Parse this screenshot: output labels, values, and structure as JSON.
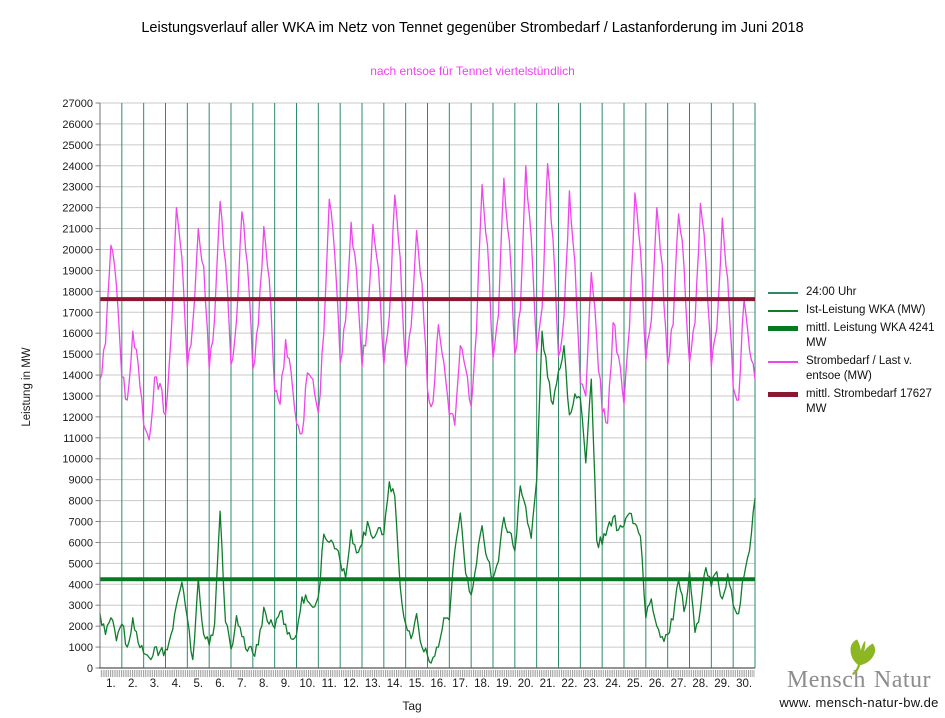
{
  "title": "Leistungsverlauf aller WKA im Netz von Tennet gegenüber  Strombedarf / Lastanforderung im Juni 2018",
  "subtitle": "nach entsoe für Tennet viertelstündlich",
  "subtitle_color": "#f23ff2",
  "legend": {
    "items": [
      {
        "label": "24:00 Uhr",
        "color": "#2e8b6a",
        "thick": false
      },
      {
        "label": "Ist-Leistung WKA (MW)",
        "color": "#0e7d2c",
        "thick": false
      },
      {
        "label": "mittl. Leistung WKA 4241 MW",
        "color": "#067a22",
        "thick": true
      },
      {
        "label": "Strombedarf / Last v. entsoe (MW)",
        "color": "#ee46ec",
        "thick": false
      },
      {
        "label": "mittl. Strombedarf 17627 MW",
        "color": "#8b1733",
        "thick": true
      }
    ]
  },
  "logo": {
    "name_part1": "Mensch",
    "name_part2": "Natur",
    "url": "www. mensch-natur-bw.de",
    "leaf_color": "#8cb622"
  },
  "chart_data": {
    "type": "line",
    "title": "Leistungsverlauf aller WKA im Netz von Tennet gegenüber  Strombedarf / Lastanforderung im Juni 2018",
    "subtitle": "nach entsoe für Tennet viertelstündlich",
    "xlabel": "Tag",
    "ylabel": "Leistung in MW",
    "xlim": [
      0,
      30
    ],
    "ylim": [
      0,
      27000
    ],
    "ytick_step": 1000,
    "x_ticklabels": [
      "1.",
      "2.",
      "3.",
      "4.",
      "5.",
      "6.",
      "7.",
      "8.",
      "9.",
      "10.",
      "11.",
      "12.",
      "13.",
      "14.",
      "15.",
      "16.",
      "17.",
      "18.",
      "19.",
      "20.",
      "21.",
      "22.",
      "23.",
      "24.",
      "25.",
      "26.",
      "27.",
      "28.",
      "29.",
      "30."
    ],
    "sample_step_hours": 6,
    "grid": {
      "h_color": "#c9c9c9",
      "v_color": "#2e8b6a",
      "axis_color": "#707070",
      "tick_band_color": "#9e9e9e"
    },
    "day_lines": {
      "name": "24:00 Uhr",
      "color": "#2e8b6a",
      "count": 31
    },
    "series": [
      {
        "name": "Strombedarf / Last v. entsoe (MW)",
        "color": "#ee46ec",
        "width": 1.3,
        "values": [
          13800,
          15500,
          20200,
          18300,
          13900,
          12800,
          16100,
          14500,
          11600,
          10900,
          13900,
          13600,
          12100,
          15800,
          22000,
          19600,
          14400,
          16500,
          21000,
          19200,
          14300,
          16700,
          22300,
          19400,
          14500,
          16600,
          21800,
          19300,
          14300,
          16400,
          21100,
          18600,
          13200,
          12600,
          15700,
          14200,
          11700,
          11200,
          14100,
          13800,
          12200,
          16000,
          22400,
          19800,
          14600,
          16600,
          21300,
          19000,
          14400,
          16500,
          21200,
          19100,
          14500,
          16800,
          22600,
          19600,
          14400,
          16300,
          20900,
          18400,
          13300,
          12700,
          16400,
          14600,
          12100,
          11600,
          15400,
          14300,
          12500,
          16200,
          23100,
          20200,
          14800,
          16900,
          23400,
          20400,
          15000,
          17100,
          24000,
          20600,
          15100,
          17200,
          24100,
          20500,
          14900,
          16800,
          22800,
          19400,
          13600,
          13000,
          18900,
          15800,
          12200,
          11700,
          16500,
          14900,
          12600,
          16300,
          22700,
          20000,
          14700,
          16600,
          22000,
          19300,
          14500,
          16400,
          21700,
          19200,
          14600,
          16500,
          22200,
          19400,
          14400,
          16200,
          21500,
          18600,
          13400,
          12800,
          17600,
          15200,
          13800
        ]
      },
      {
        "name": "Ist-Leistung WKA (MW)",
        "color": "#0e7d2c",
        "width": 1.3,
        "values": [
          2600,
          1600,
          2400,
          1300,
          2100,
          1000,
          2400,
          1200,
          700,
          500,
          1000,
          800,
          900,
          1600,
          3000,
          4100,
          2400,
          400,
          4300,
          1600,
          1100,
          2100,
          7500,
          2200,
          900,
          2500,
          1500,
          800,
          700,
          1100,
          2900,
          2100,
          1900,
          2700,
          2100,
          1400,
          1600,
          3400,
          3200,
          2900,
          3400,
          6400,
          6000,
          5700,
          5100,
          4300,
          6600,
          5500,
          5900,
          7000,
          6200,
          6700,
          6400,
          8900,
          8200,
          3900,
          2100,
          1400,
          2600,
          1000,
          600,
          500,
          1000,
          2400,
          2300,
          5600,
          7400,
          4500,
          3500,
          5000,
          6800,
          5200,
          4300,
          5100,
          7200,
          6500,
          5600,
          8700,
          7700,
          6200,
          9000,
          16100,
          13900,
          12600,
          14200,
          15400,
          12100,
          13100,
          12900,
          9800,
          13800,
          6100,
          5900,
          6700,
          7200,
          6600,
          6800,
          7400,
          6900,
          6300,
          2400,
          3300,
          2000,
          1500,
          1600,
          2300,
          4200,
          2700,
          4600,
          1700,
          2800,
          4800,
          3900,
          4600,
          3300,
          4500,
          3000,
          2600,
          4400,
          5600,
          8100
        ]
      }
    ],
    "mean_lines": [
      {
        "name": "mittl. Leistung WKA",
        "value": 4241,
        "color": "#067a22",
        "width": 4
      },
      {
        "name": "mittl. Strombedarf",
        "value": 17627,
        "color": "#8b1733",
        "width": 4
      }
    ]
  }
}
